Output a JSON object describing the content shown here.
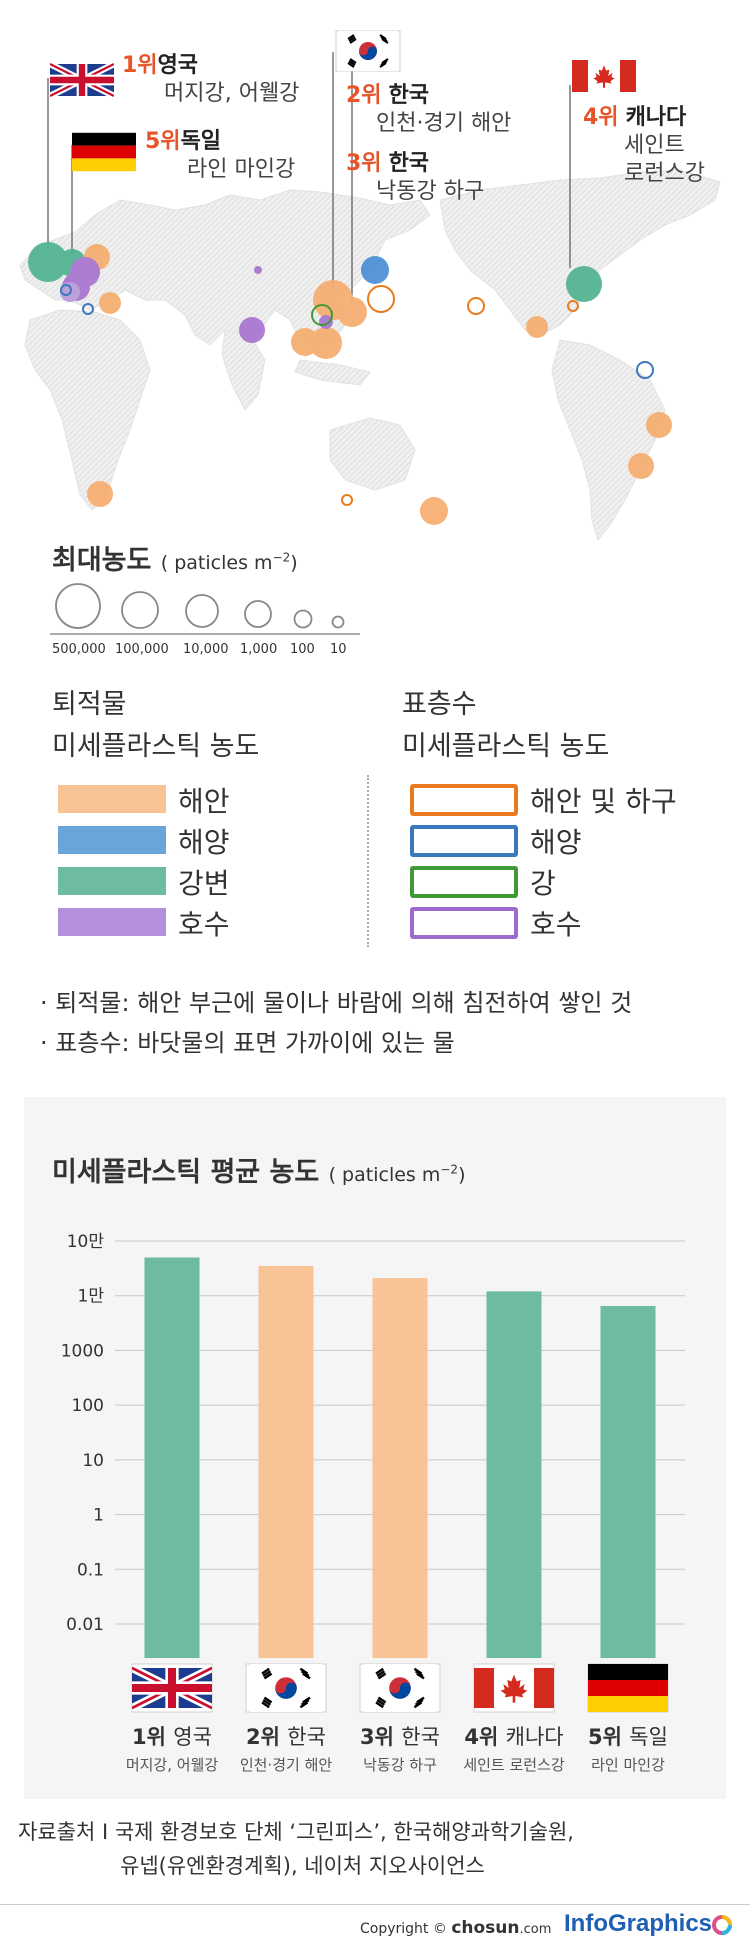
{
  "map": {
    "labels": [
      {
        "rank": "1위",
        "name": "영국",
        "sub": "머지강, 어웰강",
        "flag": "uk-flag"
      },
      {
        "rank": "5위",
        "name": "독일",
        "sub": "라인 마인강",
        "flag": "germany-flag"
      },
      {
        "rank": "2위",
        "name": "한국",
        "sub": "인천·경기 해안",
        "flag": "korea-flag"
      },
      {
        "rank": "3위",
        "name": "한국",
        "sub": "낙동강 하구",
        "flag": "korea-flag"
      },
      {
        "rank": "4위",
        "name": "캐나다",
        "sub_line1": "세인트",
        "sub_line2": "로런스강",
        "flag": "canada-flag"
      }
    ]
  },
  "size_legend": {
    "title": "최대농도",
    "unit": "( paticles m",
    "unit_exp": "−2",
    "unit_close": ")",
    "values": [
      "500,000",
      "100,000",
      "10,000",
      "1,000",
      "100",
      "10"
    ]
  },
  "legend": {
    "sediment_title_1": "퇴적물",
    "sediment_title_2": "미세플라스틱 농도",
    "sediment_items": [
      "해안",
      "해양",
      "강변",
      "호수"
    ],
    "surface_title_1": "표층수",
    "surface_title_2": "미세플라스틱 농도",
    "surface_items": [
      "해안 및 하구",
      "해양",
      "강",
      "호수"
    ]
  },
  "notes": [
    "· 퇴적물: 해안 부근에 물이나 바람에 의해 침전하여 쌓인 것",
    "· 표층수: 바닷물의 표면 가까이에 있는 물"
  ],
  "colors": {
    "coast": "#f6ad6e",
    "ocean": "#4a8fd4",
    "river": "#4fb38f",
    "lake": "#a874cf",
    "coast_line": "#e87b1e",
    "ocean_line": "#3a79bd",
    "river_line": "#3f9a36",
    "lake_line": "#9d6bd0",
    "bar_green": "#6dbca0",
    "bar_orange": "#f8c496",
    "accent_red": "#e8542a"
  },
  "chart_data": {
    "type": "bar",
    "title": "미세플라스틱 평균 농도",
    "unit": "( paticles m",
    "unit_exp": "−2",
    "unit_close": ")",
    "yscale": "log",
    "ylim": [
      0.01,
      100000
    ],
    "y_ticks": [
      {
        "value": 100000,
        "label": "10만"
      },
      {
        "value": 10000,
        "label": "1만"
      },
      {
        "value": 1000,
        "label": "1000"
      },
      {
        "value": 100,
        "label": "100"
      },
      {
        "value": 10,
        "label": "10"
      },
      {
        "value": 1,
        "label": "1"
      },
      {
        "value": 0.1,
        "label": "0.1"
      },
      {
        "value": 0.01,
        "label": "0.01"
      }
    ],
    "categories": [
      "1위 영국",
      "2위 한국",
      "3위 한국",
      "4위 캐나다",
      "5위 독일"
    ],
    "ranks": [
      "1위",
      "2위",
      "3위",
      "4위",
      "5위"
    ],
    "names": [
      "영국",
      "한국",
      "한국",
      "캐나다",
      "독일"
    ],
    "subs": [
      "머지강, 어웰강",
      "인천·경기 해안",
      "낙동강 하구",
      "세인트 로런스강",
      "라인 마인강"
    ],
    "values": [
      50000,
      35000,
      21000,
      12000,
      6500
    ],
    "bar_colors": [
      "#6dbca0",
      "#f8c496",
      "#f8c496",
      "#6dbca0",
      "#6dbca0"
    ],
    "flags": [
      "uk-flag",
      "korea-flag",
      "korea-flag",
      "canada-flag",
      "germany-flag"
    ],
    "grid": true
  },
  "footer": {
    "source_line1": "자료출처 I 국제 환경보호 단체 ‘그린피스’, 한국해양과학기술원,",
    "source_line2": "유넵(유엔환경계획), 네이처 지오사이언스",
    "copyright": "Copyright ©",
    "brand": "chosun",
    "brand_suffix": ".com",
    "infographics": "InfoGraphics"
  }
}
